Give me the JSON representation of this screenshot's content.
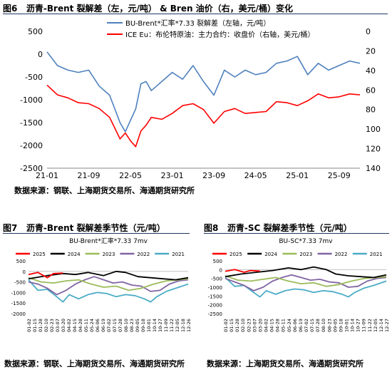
{
  "figures": [
    {
      "number": "图6",
      "title": "沥青-Brent 裂解差（左，元/吨） & Bren 油价（右，美元/桶）变化",
      "source": "数据来源：钢联、上海期货交易所、海通期货研究所"
    },
    {
      "number": "图7",
      "title": "沥青-Brent 裂解差季节性（元/吨）",
      "source": "数据来源：钢联、上海期货交易所、海通期货研究所"
    },
    {
      "number": "图8",
      "title": "沥青-SC 裂解差季节性（元/吨）",
      "source": "数据来源：上海期货交易所、海通期货研究所"
    }
  ],
  "chart_data": [
    {
      "type": "line",
      "x_ticks": [
        "21-01",
        "21-09",
        "22-05",
        "23-01",
        "23-09",
        "24-05",
        "25-01",
        "25-09"
      ],
      "y_left_ticks": [
        500,
        0,
        -500,
        -1000,
        -1500,
        -2000,
        -2500
      ],
      "y_left_range": [
        -2500,
        500
      ],
      "y_right_ticks": [
        0,
        20,
        40,
        60,
        80,
        100,
        120,
        140
      ],
      "y_right_range": [
        0,
        140
      ],
      "y_right_inverted": true,
      "legend_position": "top-right",
      "series": [
        {
          "name": "BU-Brent*汇率*7.33 裂解差（左轴，元/吨）",
          "axis": "left",
          "color": "#4f81bd",
          "points": [
            [
              "21-01",
              50
            ],
            [
              "21-03",
              -250
            ],
            [
              "21-05",
              -350
            ],
            [
              "21-07",
              -400
            ],
            [
              "21-09",
              -350
            ],
            [
              "21-11",
              -700
            ],
            [
              "22-01",
              -900
            ],
            [
              "22-03",
              -1500
            ],
            [
              "22-04",
              -1700
            ],
            [
              "22-05",
              -1450
            ],
            [
              "22-06",
              -1200
            ],
            [
              "22-07",
              -650
            ],
            [
              "22-08",
              -600
            ],
            [
              "22-09",
              -800
            ],
            [
              "22-11",
              -600
            ],
            [
              "23-01",
              -400
            ],
            [
              "23-03",
              -550
            ],
            [
              "23-05",
              -250
            ],
            [
              "23-07",
              -600
            ],
            [
              "23-09",
              -900
            ],
            [
              "23-11",
              -350
            ],
            [
              "24-01",
              -500
            ],
            [
              "24-03",
              -350
            ],
            [
              "24-05",
              -450
            ],
            [
              "24-07",
              -400
            ],
            [
              "24-09",
              -200
            ],
            [
              "24-11",
              -150
            ],
            [
              "25-01",
              -50
            ],
            [
              "25-03",
              -450
            ],
            [
              "25-05",
              -200
            ],
            [
              "25-07",
              -350
            ],
            [
              "25-09",
              -250
            ],
            [
              "25-11",
              -150
            ],
            [
              "26-01",
              -200
            ]
          ]
        },
        {
          "name": "ICE Eu：布伦特原油：主力合约：收盘价（右轴，美元/桶）",
          "axis": "right",
          "color": "#ff0000",
          "points": [
            [
              "21-01",
              55
            ],
            [
              "21-03",
              65
            ],
            [
              "21-05",
              68
            ],
            [
              "21-07",
              73
            ],
            [
              "21-09",
              74
            ],
            [
              "21-11",
              79
            ],
            [
              "22-01",
              88
            ],
            [
              "22-03",
              110
            ],
            [
              "22-04",
              104
            ],
            [
              "22-05",
              112
            ],
            [
              "22-06",
              118
            ],
            [
              "22-07",
              102
            ],
            [
              "22-08",
              96
            ],
            [
              "22-09",
              88
            ],
            [
              "22-11",
              90
            ],
            [
              "23-01",
              84
            ],
            [
              "23-03",
              76
            ],
            [
              "23-05",
              74
            ],
            [
              "23-07",
              80
            ],
            [
              "23-09",
              94
            ],
            [
              "23-11",
              82
            ],
            [
              "24-01",
              79
            ],
            [
              "24-03",
              84
            ],
            [
              "24-05",
              83
            ],
            [
              "24-07",
              82
            ],
            [
              "24-09",
              72
            ],
            [
              "24-11",
              73
            ],
            [
              "25-01",
              76
            ],
            [
              "25-03",
              71
            ],
            [
              "25-05",
              64
            ],
            [
              "25-07",
              68
            ],
            [
              "25-09",
              67
            ],
            [
              "25-11",
              64
            ],
            [
              "26-01",
              65
            ]
          ]
        }
      ]
    },
    {
      "type": "line",
      "subtitle": "BU-Brent*汇率*7.33 7mv",
      "x_ticks": [
        "01-02",
        "01-15",
        "01-28",
        "02-10",
        "02-23",
        "03-07",
        "03-20",
        "04-02",
        "04-15",
        "04-28",
        "05-11",
        "05-24",
        "06-06",
        "06-19",
        "07-02",
        "07-15",
        "07-28",
        "08-10",
        "08-23",
        "09-05",
        "09-18",
        "10-01",
        "10-14",
        "10-27",
        "11-09",
        "11-22",
        "12-05",
        "12-18",
        "12-26"
      ],
      "y_ticks": [
        500,
        0,
        -500,
        -1000,
        -1500,
        -2000
      ],
      "y_range": [
        -2000,
        500
      ],
      "legend_position": "top",
      "series": [
        {
          "name": "2025",
          "color": "#ff0000",
          "points": [
            [
              0,
              -150
            ],
            [
              3,
              -50
            ],
            [
              6,
              -300
            ],
            [
              8,
              -100
            ],
            [
              11,
              -80
            ]
          ]
        },
        {
          "name": "2024",
          "color": "#000000",
          "points": [
            [
              0,
              -350
            ],
            [
              6,
              -200
            ],
            [
              11,
              -100
            ],
            [
              15,
              -150
            ],
            [
              19,
              -50
            ],
            [
              24,
              -200
            ],
            [
              28,
              0
            ],
            [
              31,
              -50
            ],
            [
              35,
              -250
            ],
            [
              39,
              -300
            ],
            [
              43,
              -350
            ],
            [
              47,
              -400
            ],
            [
              51,
              -300
            ]
          ]
        },
        {
          "name": "2023",
          "color": "#9bbb59",
          "points": [
            [
              0,
              -300
            ],
            [
              4,
              -500
            ],
            [
              8,
              -550
            ],
            [
              12,
              -450
            ],
            [
              16,
              -400
            ],
            [
              20,
              -600
            ],
            [
              24,
              -750
            ],
            [
              28,
              -700
            ],
            [
              32,
              -900
            ],
            [
              36,
              -800
            ],
            [
              40,
              -600
            ],
            [
              44,
              -450
            ],
            [
              48,
              -400
            ],
            [
              51,
              -350
            ]
          ]
        },
        {
          "name": "2022",
          "color": "#8064a2",
          "points": [
            [
              0,
              -500
            ],
            [
              3,
              -600
            ],
            [
              6,
              -800
            ],
            [
              9,
              -1100
            ],
            [
              12,
              -900
            ],
            [
              15,
              -600
            ],
            [
              18,
              -400
            ],
            [
              21,
              -250
            ],
            [
              24,
              -400
            ],
            [
              27,
              -550
            ],
            [
              30,
              -500
            ],
            [
              33,
              -650
            ],
            [
              36,
              -700
            ],
            [
              39,
              -950
            ],
            [
              42,
              -900
            ],
            [
              45,
              -600
            ],
            [
              48,
              -450
            ],
            [
              51,
              -400
            ]
          ]
        },
        {
          "name": "2021",
          "color": "#4bacc6",
          "points": [
            [
              0,
              -400
            ],
            [
              3,
              -900
            ],
            [
              6,
              -850
            ],
            [
              9,
              -1200
            ],
            [
              11,
              -1450
            ],
            [
              13,
              -1100
            ],
            [
              16,
              -1300
            ],
            [
              19,
              -1100
            ],
            [
              22,
              -1000
            ],
            [
              25,
              -1050
            ],
            [
              28,
              -1200
            ],
            [
              31,
              -1100
            ],
            [
              34,
              -1150
            ],
            [
              37,
              -1300
            ],
            [
              39,
              -1450
            ],
            [
              41,
              -1200
            ],
            [
              44,
              -950
            ],
            [
              47,
              -800
            ],
            [
              51,
              -600
            ]
          ]
        }
      ]
    },
    {
      "type": "line",
      "subtitle": "BU-SC*7.33 7mv",
      "x_ticks": [
        "01-02",
        "01-15",
        "01-28",
        "02-10",
        "02-23",
        "03-07",
        "03-20",
        "04-02",
        "04-15",
        "04-28",
        "05-11",
        "05-24",
        "06-06",
        "06-19",
        "07-02",
        "07-15",
        "07-28",
        "08-10",
        "08-23",
        "09-05",
        "09-18",
        "10-01",
        "10-14",
        "10-27",
        "11-09",
        "11-22",
        "12-05",
        "12-14",
        "12-27"
      ],
      "y_ticks": [
        500,
        0,
        -500,
        -1000,
        -1500,
        -2000,
        -2500
      ],
      "y_range": [
        -2500,
        500
      ],
      "legend_position": "top",
      "series": [
        {
          "name": "2025",
          "color": "#ff0000",
          "points": [
            [
              0,
              -100
            ],
            [
              3,
              0
            ],
            [
              6,
              -150
            ],
            [
              8,
              -50
            ],
            [
              11,
              -80
            ]
          ]
        },
        {
          "name": "2024",
          "color": "#000000",
          "points": [
            [
              0,
              -400
            ],
            [
              5,
              -250
            ],
            [
              10,
              -150
            ],
            [
              15,
              -50
            ],
            [
              20,
              100
            ],
            [
              24,
              0
            ],
            [
              28,
              150
            ],
            [
              32,
              0
            ],
            [
              35,
              -250
            ],
            [
              39,
              -350
            ],
            [
              43,
              -400
            ],
            [
              47,
              -450
            ],
            [
              51,
              -300
            ]
          ]
        },
        {
          "name": "2023",
          "color": "#9bbb59",
          "points": [
            [
              0,
              -350
            ],
            [
              4,
              -600
            ],
            [
              8,
              -650
            ],
            [
              12,
              -550
            ],
            [
              16,
              -450
            ],
            [
              20,
              -650
            ],
            [
              24,
              -800
            ],
            [
              28,
              -750
            ],
            [
              32,
              -950
            ],
            [
              36,
              -850
            ],
            [
              40,
              -650
            ],
            [
              44,
              -500
            ],
            [
              48,
              -450
            ],
            [
              51,
              -400
            ]
          ]
        },
        {
          "name": "2022",
          "color": "#8064a2",
          "points": [
            [
              0,
              -500
            ],
            [
              3,
              -700
            ],
            [
              6,
              -900
            ],
            [
              9,
              -1200
            ],
            [
              12,
              -1000
            ],
            [
              15,
              -650
            ],
            [
              18,
              -450
            ],
            [
              21,
              -300
            ],
            [
              24,
              -450
            ],
            [
              27,
              -600
            ],
            [
              30,
              -550
            ],
            [
              33,
              -700
            ],
            [
              36,
              -750
            ],
            [
              39,
              -1000
            ],
            [
              42,
              -950
            ],
            [
              45,
              -650
            ],
            [
              48,
              -500
            ],
            [
              51,
              -450
            ]
          ]
        },
        {
          "name": "2021",
          "color": "#4bacc6",
          "points": [
            [
              0,
              -450
            ],
            [
              3,
              -950
            ],
            [
              6,
              -900
            ],
            [
              9,
              -1300
            ],
            [
              11,
              -1550
            ],
            [
              13,
              -1200
            ],
            [
              16,
              -1400
            ],
            [
              19,
              -1200
            ],
            [
              22,
              -1100
            ],
            [
              25,
              -1150
            ],
            [
              28,
              -1300
            ],
            [
              31,
              -1200
            ],
            [
              34,
              -1250
            ],
            [
              37,
              -1400
            ],
            [
              39,
              -1550
            ],
            [
              41,
              -1300
            ],
            [
              44,
              -1050
            ],
            [
              47,
              -900
            ],
            [
              51,
              -650
            ]
          ]
        }
      ]
    }
  ]
}
